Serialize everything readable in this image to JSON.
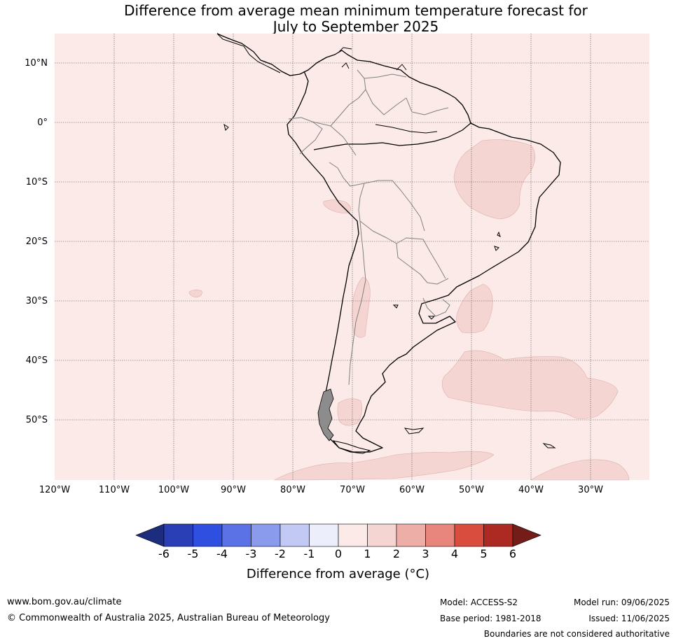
{
  "title_line1": "Difference from average mean minimum temperature forecast for",
  "title_line2": "July to September 2025",
  "map": {
    "lat_labels": [
      "10°N",
      "0°",
      "10°S",
      "20°S",
      "30°S",
      "40°S",
      "50°S"
    ],
    "lon_labels": [
      "120°W",
      "110°W",
      "100°W",
      "90°W",
      "80°W",
      "70°W",
      "60°W",
      "50°W",
      "40°W",
      "30°W"
    ],
    "background_category": "0 to 1",
    "colors": {
      "ocean_fill": "#fbeae8",
      "anomaly_1_2": "#f5d5d2",
      "coastline": "#000000",
      "border": "#808080"
    }
  },
  "colorbar": {
    "ticks": [
      "-6",
      "-5",
      "-4",
      "-3",
      "-2",
      "-1",
      "0",
      "1",
      "2",
      "3",
      "4",
      "5",
      "6"
    ],
    "colors": [
      "#1c2d7d",
      "#2a3fb5",
      "#2f4fe0",
      "#5b72e6",
      "#8a9bee",
      "#c2c9f4",
      "#eceefb",
      "#fbeae8",
      "#f5d5d2",
      "#eeaea8",
      "#e8857d",
      "#d94d3e",
      "#ad2a22",
      "#731c18"
    ],
    "label": "Difference from average (°C)"
  },
  "footer": {
    "url": "www.bom.gov.au/climate",
    "copyright": "© Commonwealth of Australia 2025, Australian Bureau of Meteorology",
    "model": "Model: ACCESS-S2",
    "base_period": "Base period: 1981-2018",
    "model_run": "Model run: 09/06/2025",
    "issued": "Issued: 11/06/2025",
    "disclaimer": "Boundaries are not considered authoritative"
  }
}
